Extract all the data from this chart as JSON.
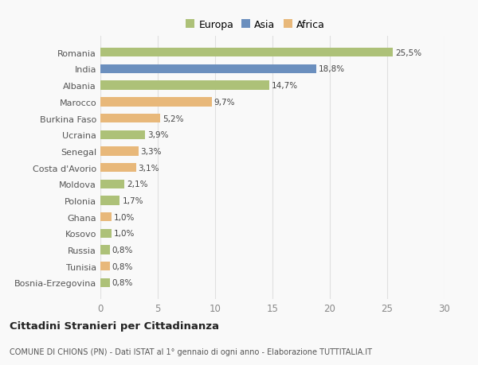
{
  "countries": [
    "Romania",
    "India",
    "Albania",
    "Marocco",
    "Burkina Faso",
    "Ucraina",
    "Senegal",
    "Costa d'Avorio",
    "Moldova",
    "Polonia",
    "Ghana",
    "Kosovo",
    "Russia",
    "Tunisia",
    "Bosnia-Erzegovina"
  ],
  "values": [
    25.5,
    18.8,
    14.7,
    9.7,
    5.2,
    3.9,
    3.3,
    3.1,
    2.1,
    1.7,
    1.0,
    1.0,
    0.8,
    0.8,
    0.8
  ],
  "labels": [
    "25,5%",
    "18,8%",
    "14,7%",
    "9,7%",
    "5,2%",
    "3,9%",
    "3,3%",
    "3,1%",
    "2,1%",
    "1,7%",
    "1,0%",
    "1,0%",
    "0,8%",
    "0,8%",
    "0,8%"
  ],
  "continents": [
    "Europa",
    "Asia",
    "Europa",
    "Africa",
    "Africa",
    "Europa",
    "Africa",
    "Africa",
    "Europa",
    "Europa",
    "Africa",
    "Europa",
    "Europa",
    "Africa",
    "Europa"
  ],
  "colors": {
    "Europa": "#adc178",
    "Asia": "#6b8fbe",
    "Africa": "#e8b87a"
  },
  "legend_labels": [
    "Europa",
    "Asia",
    "Africa"
  ],
  "legend_colors": [
    "#adc178",
    "#6b8fbe",
    "#e8b87a"
  ],
  "xlim": [
    0,
    30
  ],
  "xticks": [
    0,
    5,
    10,
    15,
    20,
    25,
    30
  ],
  "title": "Cittadini Stranieri per Cittadinanza",
  "subtitle": "COMUNE DI CHIONS (PN) - Dati ISTAT al 1° gennaio di ogni anno - Elaborazione TUTTITALIA.IT",
  "background_color": "#f9f9f9",
  "grid_color": "#e0e0e0",
  "bar_height": 0.55
}
